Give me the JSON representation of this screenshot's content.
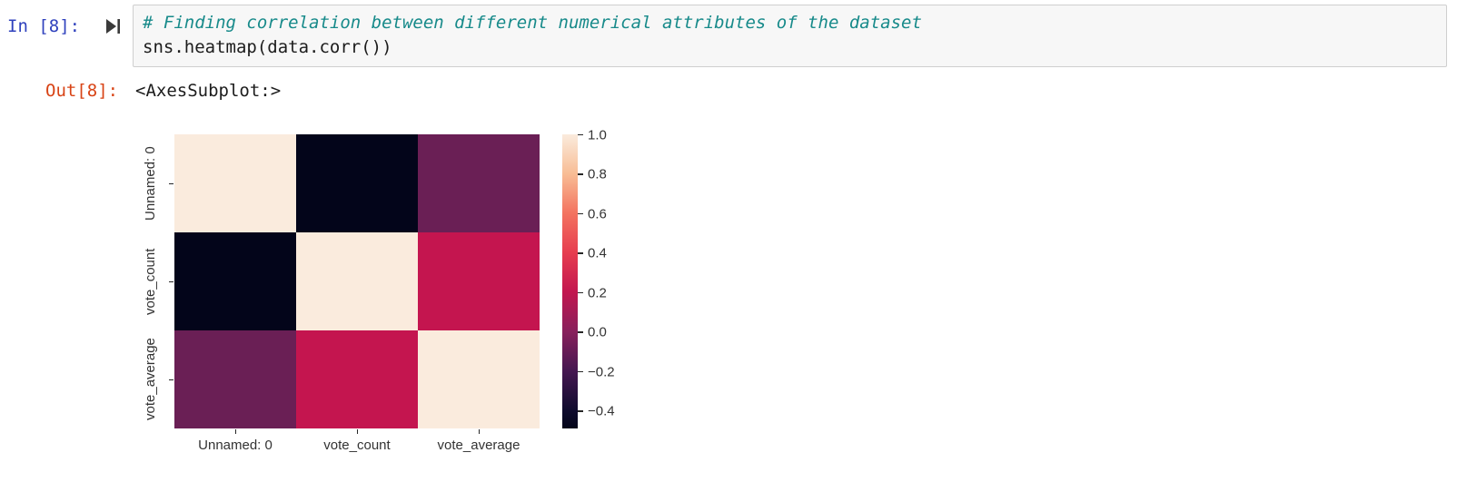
{
  "notebook": {
    "input_prompt": "In [8]:",
    "output_prompt": "Out[8]:",
    "code_lines": [
      "# Finding correlation between different numerical attributes of the dataset",
      "sns.heatmap(data.corr())"
    ],
    "output_text": "<AxesSubplot:>",
    "icons": {
      "run-cell-icon": "▶|"
    }
  },
  "colors": {
    "in_prompt": "#2f41bd",
    "out_prompt": "#d84315",
    "comment": "#178a8a",
    "code_text": "#1c1c1c",
    "cell_background": "#f7f7f7",
    "cell_border": "#cfcfcf",
    "figure_text": "#333333"
  },
  "chart_data": {
    "type": "heatmap",
    "title": "",
    "categories": [
      "Unnamed: 0",
      "vote_count",
      "vote_average"
    ],
    "x_tick_labels": [
      "Unnamed: 0",
      "vote_count",
      "vote_average"
    ],
    "y_tick_labels": [
      "Unnamed: 0",
      "vote_count",
      "vote_average"
    ],
    "matrix": [
      [
        1.0,
        -0.49,
        -0.07
      ],
      [
        -0.49,
        1.0,
        0.22
      ],
      [
        -0.07,
        0.22,
        1.0
      ]
    ],
    "cell_colors": [
      [
        "#faebdd",
        "#03051a",
        "#6a1f55"
      ],
      [
        "#03051a",
        "#faebdd",
        "#c4154f"
      ],
      [
        "#6a1f55",
        "#c4154f",
        "#faebdd"
      ]
    ],
    "colorbar": {
      "vmin": -0.49,
      "vmax": 1.0,
      "tick_labels": [
        "1.0",
        "0.8",
        "0.6",
        "0.4",
        "0.2",
        "0.0",
        "−0.2",
        "−0.4"
      ],
      "gradient": [
        {
          "pos": 0,
          "color": "#faebdd"
        },
        {
          "pos": 13.4,
          "color": "#f8bd95"
        },
        {
          "pos": 26.8,
          "color": "#f37360"
        },
        {
          "pos": 40.3,
          "color": "#e63d4f"
        },
        {
          "pos": 53.7,
          "color": "#c2164f"
        },
        {
          "pos": 67.1,
          "color": "#88205c"
        },
        {
          "pos": 80.5,
          "color": "#451751"
        },
        {
          "pos": 94,
          "color": "#0f0b2d"
        },
        {
          "pos": 100,
          "color": "#03051a"
        }
      ],
      "legend_position": "right"
    },
    "grid": false
  }
}
